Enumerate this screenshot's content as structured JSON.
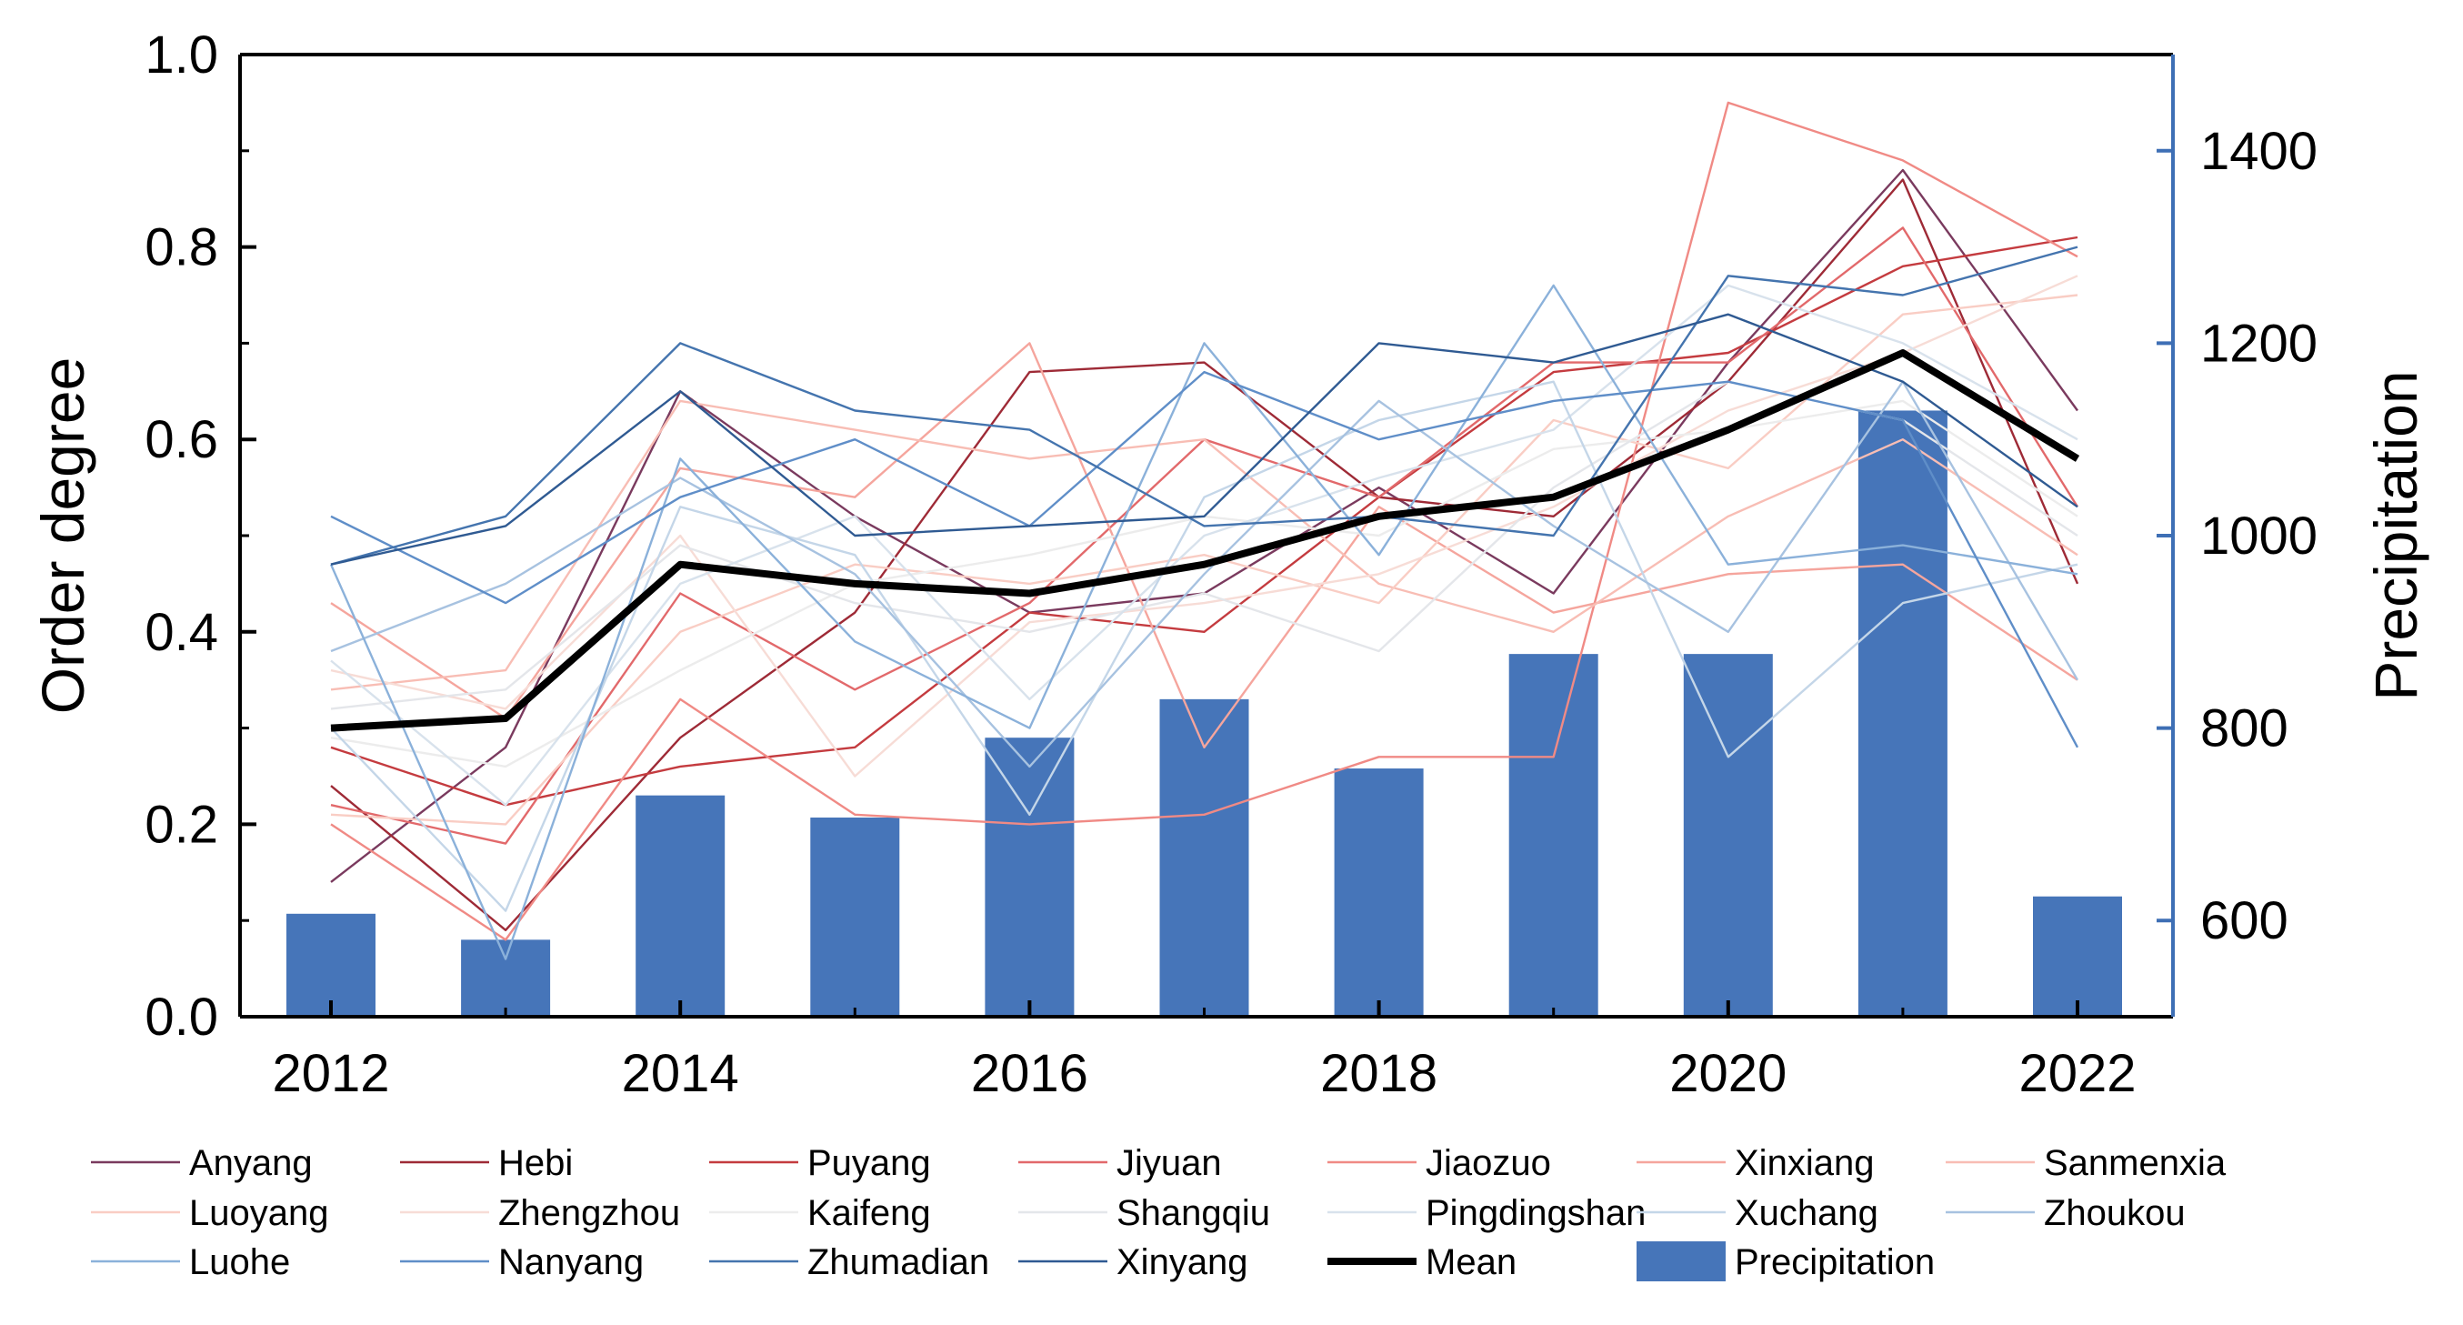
{
  "chart_data": {
    "type": "line+bar",
    "x": [
      2012,
      2013,
      2014,
      2015,
      2016,
      2017,
      2018,
      2019,
      2020,
      2021,
      2022
    ],
    "x_ticks": [
      "2012",
      "2014",
      "2016",
      "2018",
      "2020",
      "2022"
    ],
    "y_left": {
      "label": "Order degree",
      "lim": [
        0,
        1.0
      ],
      "ticks": [
        "0.0",
        "0.2",
        "0.4",
        "0.6",
        "0.8",
        "1.0"
      ]
    },
    "y_right": {
      "label": "Precipitation",
      "lim": [
        500,
        1500
      ],
      "ticks": [
        "600",
        "800",
        "1000",
        "1200",
        "1400"
      ]
    },
    "series": [
      {
        "name": "Anyang",
        "color": "#7a3a5e",
        "values": [
          0.14,
          0.28,
          0.65,
          0.52,
          0.42,
          0.44,
          0.55,
          0.44,
          0.68,
          0.88,
          0.63
        ]
      },
      {
        "name": "Hebi",
        "color": "#9e2a36",
        "values": [
          0.24,
          0.09,
          0.29,
          0.42,
          0.67,
          0.68,
          0.54,
          0.52,
          0.66,
          0.87,
          0.45
        ]
      },
      {
        "name": "Puyang",
        "color": "#c43b3f",
        "values": [
          0.28,
          0.22,
          0.26,
          0.28,
          0.42,
          0.4,
          0.54,
          0.67,
          0.69,
          0.78,
          0.81
        ]
      },
      {
        "name": "Jiyuan",
        "color": "#e2696b",
        "values": [
          0.22,
          0.18,
          0.44,
          0.34,
          0.43,
          0.6,
          0.54,
          0.68,
          0.68,
          0.82,
          0.53
        ]
      },
      {
        "name": "Jiaozuo",
        "color": "#f08a85",
        "values": [
          0.2,
          0.08,
          0.33,
          0.21,
          0.2,
          0.21,
          0.27,
          0.27,
          0.95,
          0.89,
          0.79
        ]
      },
      {
        "name": "Xinxiang",
        "color": "#f5a59d",
        "values": [
          0.43,
          0.31,
          0.57,
          0.54,
          0.7,
          0.28,
          0.53,
          0.42,
          0.46,
          0.47,
          0.35
        ]
      },
      {
        "name": "Sanmenxia",
        "color": "#f8bdb4",
        "values": [
          0.34,
          0.36,
          0.64,
          0.61,
          0.58,
          0.6,
          0.45,
          0.4,
          0.52,
          0.6,
          0.48
        ]
      },
      {
        "name": "Luoyang",
        "color": "#f9cdc4",
        "values": [
          0.21,
          0.2,
          0.4,
          0.47,
          0.45,
          0.48,
          0.43,
          0.62,
          0.57,
          0.73,
          0.75
        ]
      },
      {
        "name": "Zhengzhou",
        "color": "#f7dcd6",
        "values": [
          0.36,
          0.32,
          0.5,
          0.25,
          0.41,
          0.43,
          0.46,
          0.53,
          0.63,
          0.69,
          0.77
        ]
      },
      {
        "name": "Kaifeng",
        "color": "#ececec",
        "values": [
          0.29,
          0.26,
          0.36,
          0.45,
          0.48,
          0.52,
          0.5,
          0.59,
          0.61,
          0.64,
          0.52
        ]
      },
      {
        "name": "Shangqiu",
        "color": "#e4e6ea",
        "values": [
          0.32,
          0.34,
          0.49,
          0.43,
          0.4,
          0.44,
          0.38,
          0.55,
          0.66,
          0.62,
          0.5
        ]
      },
      {
        "name": "Pingdingshan",
        "color": "#d8e2ec",
        "values": [
          0.37,
          0.22,
          0.45,
          0.52,
          0.33,
          0.5,
          0.56,
          0.61,
          0.76,
          0.7,
          0.6
        ]
      },
      {
        "name": "Xuchang",
        "color": "#c4d6e8",
        "values": [
          0.3,
          0.11,
          0.53,
          0.48,
          0.21,
          0.54,
          0.62,
          0.66,
          0.27,
          0.43,
          0.47
        ]
      },
      {
        "name": "Zhoukou",
        "color": "#a7c2e0",
        "values": [
          0.38,
          0.45,
          0.56,
          0.46,
          0.26,
          0.46,
          0.64,
          0.51,
          0.4,
          0.66,
          0.35
        ]
      },
      {
        "name": "Luohe",
        "color": "#8bb1da",
        "values": [
          0.47,
          0.06,
          0.58,
          0.39,
          0.3,
          0.7,
          0.48,
          0.76,
          0.47,
          0.49,
          0.46
        ]
      },
      {
        "name": "Nanyang",
        "color": "#5f8ec8",
        "values": [
          0.52,
          0.43,
          0.54,
          0.6,
          0.51,
          0.67,
          0.6,
          0.64,
          0.66,
          0.62,
          0.28
        ]
      },
      {
        "name": "Zhumadian",
        "color": "#4474ae",
        "values": [
          0.47,
          0.52,
          0.7,
          0.63,
          0.61,
          0.51,
          0.52,
          0.5,
          0.77,
          0.75,
          0.8
        ]
      },
      {
        "name": "Xinyang",
        "color": "#2f5a92",
        "values": [
          0.47,
          0.51,
          0.65,
          0.5,
          0.51,
          0.52,
          0.7,
          0.68,
          0.73,
          0.66,
          0.53
        ]
      }
    ],
    "mean": {
      "name": "Mean",
      "color": "#000000",
      "values": [
        0.3,
        0.31,
        0.47,
        0.45,
        0.44,
        0.47,
        0.52,
        0.54,
        0.61,
        0.69,
        0.58
      ]
    },
    "bars": {
      "name": "Precipitation",
      "color": "#4675b9",
      "axis": "right",
      "values": [
        607,
        580,
        730,
        707,
        790,
        830,
        758,
        877,
        877,
        1130,
        625
      ]
    },
    "legend": {
      "placement": "bottom",
      "columns": 7
    }
  }
}
